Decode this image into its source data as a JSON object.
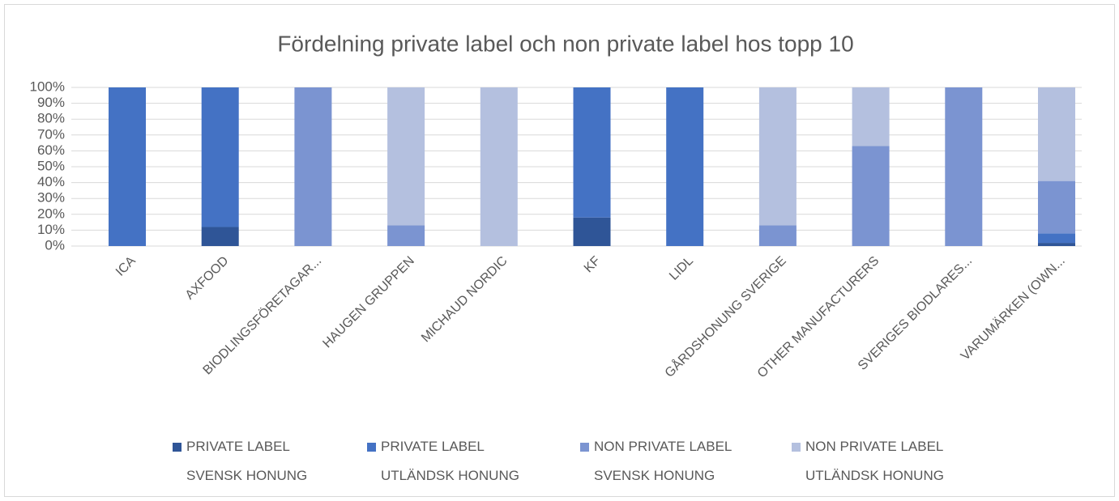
{
  "chart_data": {
    "type": "stacked_bar",
    "title": "Fördelning private label och non private label hos topp 10",
    "categories": [
      "ICA",
      "AXFOOD",
      "BIODLINGSFÖRETAGAR...",
      "HAUGEN GRUPPEN",
      "MICHAUD NORDIC",
      "KF",
      "LIDL",
      "GÅRDSHONUNG SVERIGE",
      "OTHER MANUFACTURERS",
      "SVERIGES BIODLARES...",
      "VARUMÄRKEN (OWN..."
    ],
    "series": [
      {
        "name": "PRIVATE LABEL SVENSK HONUNG",
        "color": "#2f5597",
        "values": [
          0,
          12,
          0,
          0,
          0,
          18,
          0,
          0,
          0,
          0,
          2
        ]
      },
      {
        "name": "PRIVATE LABEL UTLÄNDSK HONUNG",
        "color": "#4472c4",
        "values": [
          100,
          88,
          0,
          0,
          0,
          82,
          100,
          0,
          0,
          0,
          6
        ]
      },
      {
        "name": "NON PRIVATE LABEL SVENSK HONUNG",
        "color": "#7b94d1",
        "values": [
          0,
          0,
          100,
          13,
          0,
          0,
          0,
          13,
          63,
          100,
          33
        ]
      },
      {
        "name": "NON PRIVATE LABEL UTLÄNDSK HONUNG",
        "color": "#b4c0df",
        "values": [
          0,
          0,
          0,
          87,
          100,
          0,
          0,
          87,
          37,
          0,
          59
        ]
      }
    ],
    "ylim": [
      0,
      100
    ],
    "yticks": [
      {
        "value": 0,
        "label": "0%"
      },
      {
        "value": 10,
        "label": "10%"
      },
      {
        "value": 20,
        "label": "20%"
      },
      {
        "value": 30,
        "label": "30%"
      },
      {
        "value": 40,
        "label": "40%"
      },
      {
        "value": 50,
        "label": "50%"
      },
      {
        "value": 60,
        "label": "60%"
      },
      {
        "value": 70,
        "label": "70%"
      },
      {
        "value": 80,
        "label": "80%"
      },
      {
        "value": 90,
        "label": "90%"
      },
      {
        "value": 100,
        "label": "100%"
      }
    ],
    "grid": true
  }
}
